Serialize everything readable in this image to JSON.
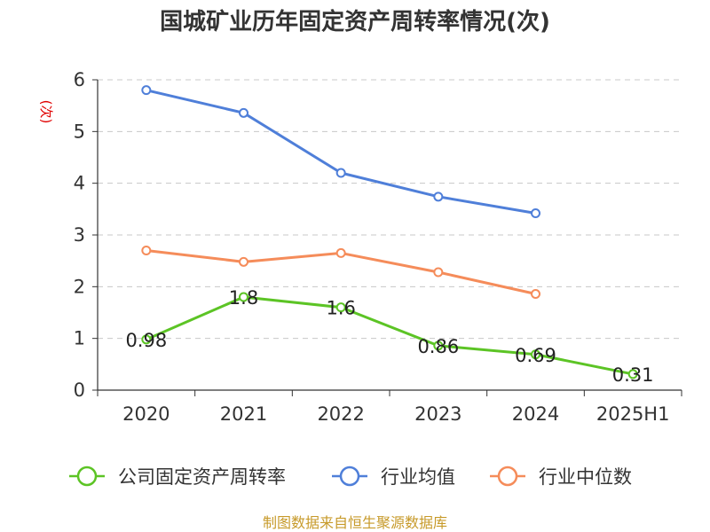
{
  "chart_data": {
    "type": "line",
    "title": "国城矿业历年固定资产周转率情况(次)",
    "ylabel": "(次)",
    "categories": [
      "2020",
      "2021",
      "2022",
      "2023",
      "2024",
      "2025H1"
    ],
    "ylim": [
      0,
      6
    ],
    "yticks": [
      "0",
      "1",
      "2",
      "3",
      "4",
      "5",
      "6"
    ],
    "grid": true,
    "legend_position": "bottom",
    "series": [
      {
        "name": "公司固定资产周转率",
        "color": "#5cc425",
        "values": [
          0.98,
          1.8,
          1.6,
          0.86,
          0.69,
          0.31
        ],
        "labels": [
          "0.98",
          "1.8",
          "1.6",
          "0.86",
          "0.69",
          "0.31"
        ]
      },
      {
        "name": "行业均值",
        "color": "#4f7fd9",
        "values": [
          5.8,
          5.36,
          4.2,
          3.74,
          3.42,
          null
        ]
      },
      {
        "name": "行业中位数",
        "color": "#f58c5a",
        "values": [
          2.7,
          2.48,
          2.65,
          2.28,
          1.86,
          null
        ]
      }
    ]
  },
  "source": "制图数据来自恒生聚源数据库"
}
